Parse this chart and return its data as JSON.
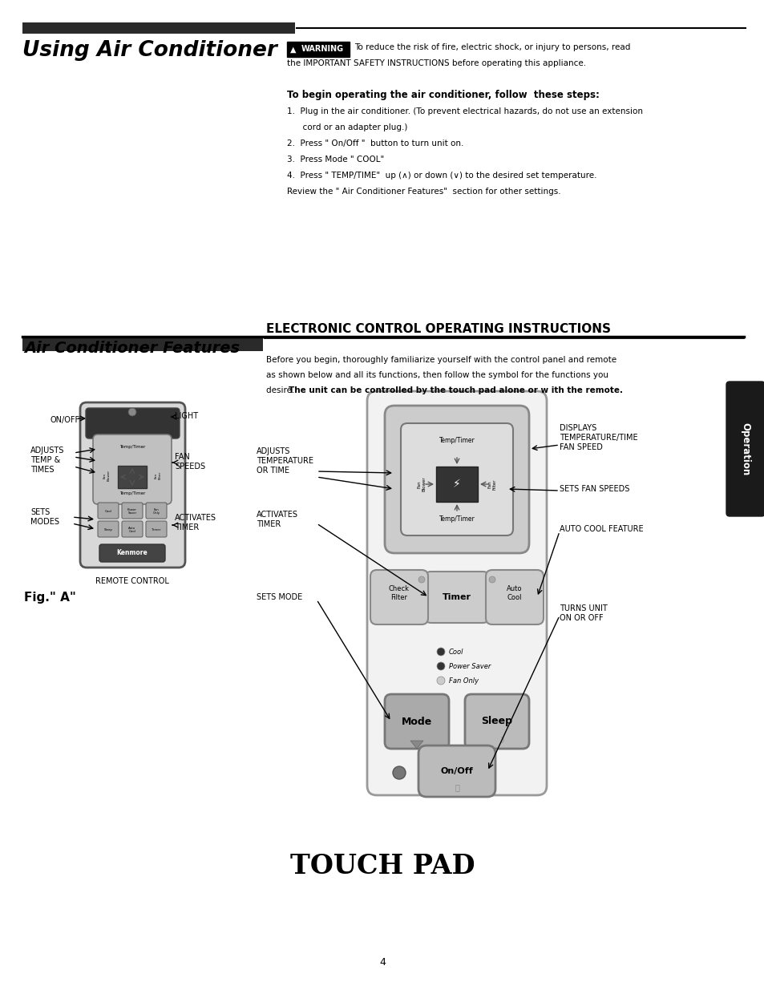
{
  "bg_color": "#ffffff",
  "page_width": 9.54,
  "page_height": 12.35,
  "section1_title": "Using Air Conditioner",
  "warning_text1": "To reduce the risk of fire, electric shock, or injury to persons, read",
  "warning_text2": "the IMPORTANT SAFETY INSTRUCTIONS before operating this appliance.",
  "steps_title": "To begin operating the air conditioner, follow  these steps:",
  "step1": "1.  Plug in the air conditioner. (To prevent electrical hazards, do not use an extension",
  "step1b": "      cord or an adapter plug.)",
  "step2": "2.  Press \" On/Off \"  button to turn unit on.",
  "step3": "3.  Press Mode \" COOL\"",
  "step4": "4.  Press \" TEMP/TIME\"  up (∧) or down (∨) to the desired set temperature.",
  "step5": "Review the \" Air Conditioner Features\"  section for other settings.",
  "section2_title": "Air Conditioner Features",
  "ecoi_title": "ELECTRONIC CONTROL OPERATING INSTRUCTIONS",
  "desc1": "Before you begin, thoroughly familiarize yourself with the control panel and remote",
  "desc2": "as shown below and all its functions, then follow the symbol for the functions you",
  "desc3_normal": "desire. ",
  "desc3_bold": "The unit can be controlled by the touch pad alone or w ith the remote.",
  "fig_label": "Fig.\" A\"",
  "touch_pad_title": "TOUCH PAD",
  "page_num": "4",
  "operation_tab_text": "Operation"
}
